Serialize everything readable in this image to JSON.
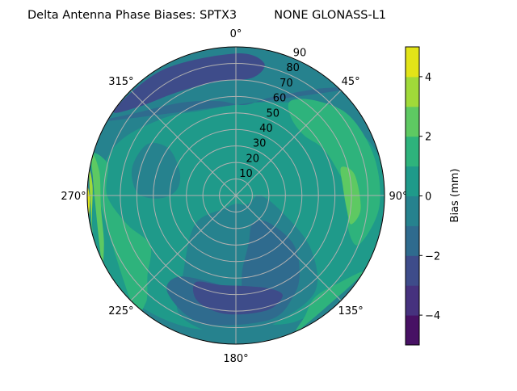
{
  "chart_data": {
    "type": "polar-contour",
    "title": "Delta Antenna Phase Biases: SPTX3          NONE GLONASS-L1",
    "azimuth_labels": [
      "0°",
      "45°",
      "90°",
      "135°",
      "180°",
      "225°",
      "270°",
      "315°"
    ],
    "azimuth_values": [
      0,
      45,
      90,
      135,
      180,
      225,
      270,
      315
    ],
    "radial_labels": [
      "10",
      "20",
      "30",
      "40",
      "50",
      "60",
      "70",
      "80",
      "90"
    ],
    "radial_values": [
      10,
      20,
      30,
      40,
      50,
      60,
      70,
      80,
      90
    ],
    "rmax": 90,
    "grid": true,
    "colorbar": {
      "label": "Bias (mm)",
      "levels": [
        -5,
        -4,
        -3,
        -2,
        -1,
        0,
        1,
        2,
        3,
        4,
        5
      ],
      "colors": [
        "#471164",
        "#46327e",
        "#3e4c8a",
        "#2f6b8e",
        "#26828e",
        "#1f9a8a",
        "#2eb37c",
        "#5ec962",
        "#a0da39",
        "#e2e418"
      ],
      "ticks": [
        -4,
        -2,
        0,
        2,
        4
      ],
      "tick_labels": [
        "−4",
        "−2",
        "0",
        "2",
        "4"
      ],
      "placement": "right"
    },
    "background_level": -1,
    "regions": [
      {
        "level": 0,
        "points": [
          [
            0,
            55
          ],
          [
            20,
            60
          ],
          [
            45,
            75
          ],
          [
            70,
            88
          ],
          [
            90,
            90
          ],
          [
            120,
            90
          ],
          [
            150,
            85
          ],
          [
            170,
            80
          ],
          [
            200,
            85
          ],
          [
            230,
            90
          ],
          [
            260,
            90
          ],
          [
            290,
            80
          ],
          [
            315,
            65
          ],
          [
            340,
            55
          ]
        ]
      },
      {
        "level": -1,
        "points": [
          [
            90,
            15
          ],
          [
            110,
            10
          ],
          [
            135,
            8
          ],
          [
            180,
            5
          ],
          [
            220,
            10
          ],
          [
            235,
            30
          ],
          [
            215,
            55
          ],
          [
            205,
            80
          ],
          [
            180,
            86
          ],
          [
            160,
            80
          ],
          [
            140,
            75
          ],
          [
            125,
            55
          ],
          [
            110,
            30
          ]
        ]
      },
      {
        "level": -1,
        "points": [
          [
            270,
            40
          ],
          [
            280,
            35
          ],
          [
            295,
            38
          ],
          [
            305,
            50
          ],
          [
            300,
            62
          ],
          [
            285,
            65
          ],
          [
            272,
            60
          ],
          [
            268,
            50
          ]
        ]
      },
      {
        "level": -2,
        "points": [
          [
            300,
            90
          ],
          [
            310,
            78
          ],
          [
            330,
            65
          ],
          [
            350,
            58
          ],
          [
            5,
            55
          ],
          [
            18,
            62
          ],
          [
            30,
            72
          ],
          [
            40,
            85
          ],
          [
            45,
            90
          ]
        ]
      },
      {
        "level": -2,
        "points": [
          [
            130,
            25
          ],
          [
            150,
            20
          ],
          [
            165,
            30
          ],
          [
            175,
            45
          ],
          [
            178,
            60
          ],
          [
            190,
            55
          ],
          [
            215,
            60
          ],
          [
            215,
            72
          ],
          [
            195,
            80
          ],
          [
            165,
            78
          ],
          [
            150,
            70
          ],
          [
            140,
            60
          ],
          [
            130,
            45
          ]
        ]
      },
      {
        "level": -3,
        "points": [
          [
            305,
            90
          ],
          [
            312,
            80
          ],
          [
            330,
            72
          ],
          [
            350,
            70
          ],
          [
            8,
            72
          ],
          [
            12,
            82
          ],
          [
            0,
            86
          ],
          [
            330,
            88
          ]
        ]
      },
      {
        "level": -3,
        "points": [
          [
            205,
            58
          ],
          [
            190,
            55
          ],
          [
            175,
            55
          ],
          [
            160,
            60
          ],
          [
            155,
            67
          ],
          [
            165,
            72
          ],
          [
            185,
            72
          ],
          [
            200,
            68
          ]
        ]
      },
      {
        "level": 1,
        "points": [
          [
            35,
            58
          ],
          [
            48,
            55
          ],
          [
            62,
            60
          ],
          [
            78,
            64
          ],
          [
            92,
            70
          ],
          [
            105,
            70
          ],
          [
            112,
            80
          ],
          [
            95,
            87
          ],
          [
            75,
            87
          ],
          [
            55,
            84
          ],
          [
            40,
            75
          ],
          [
            30,
            66
          ]
        ]
      },
      {
        "level": 1,
        "points": [
          [
            122,
            90
          ],
          [
            130,
            82
          ],
          [
            142,
            78
          ],
          [
            150,
            84
          ],
          [
            155,
            90
          ]
        ]
      },
      {
        "level": 1,
        "points": [
          [
            282,
            90
          ],
          [
            284,
            80
          ],
          [
            270,
            78
          ],
          [
            255,
            68
          ],
          [
            240,
            60
          ],
          [
            228,
            72
          ],
          [
            220,
            85
          ],
          [
            225,
            90
          ]
        ]
      },
      {
        "level": 2,
        "points": [
          [
            75,
            66
          ],
          [
            85,
            65
          ],
          [
            98,
            68
          ],
          [
            104,
            72
          ],
          [
            96,
            76
          ],
          [
            80,
            73
          ]
        ]
      },
      {
        "level": 2,
        "points": [
          [
            284,
            90
          ],
          [
            280,
            84
          ],
          [
            265,
            82
          ],
          [
            250,
            85
          ],
          [
            245,
            90
          ]
        ]
      },
      {
        "level": 3,
        "points": [
          [
            279,
            90
          ],
          [
            274,
            87
          ],
          [
            262,
            88
          ],
          [
            255,
            90
          ]
        ]
      },
      {
        "level": 4,
        "points": [
          [
            273,
            90
          ],
          [
            269,
            88.5
          ],
          [
            262,
            90
          ]
        ]
      }
    ]
  }
}
